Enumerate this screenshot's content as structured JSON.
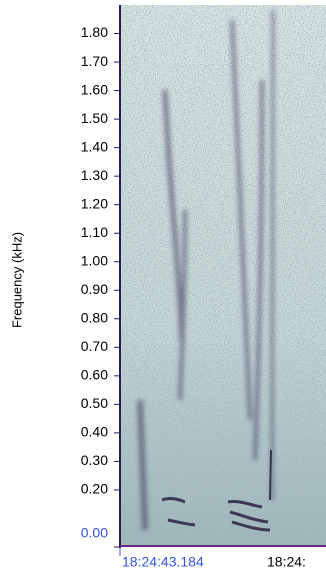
{
  "chart_data": {
    "type": "spectrogram",
    "y_label": "Frequency (kHz)",
    "ylim": [
      0,
      1.9
    ],
    "yticks": [
      {
        "value": 0,
        "label": "0.00"
      },
      {
        "value": 0.2,
        "label": "0.20"
      },
      {
        "value": 0.3,
        "label": "0.30"
      },
      {
        "value": 0.4,
        "label": "0.40"
      },
      {
        "value": 0.5,
        "label": "0.50"
      },
      {
        "value": 0.6,
        "label": "0.60"
      },
      {
        "value": 0.7,
        "label": "0.70"
      },
      {
        "value": 0.8,
        "label": "0.80"
      },
      {
        "value": 0.9,
        "label": "0.90"
      },
      {
        "value": 1.0,
        "label": "1.00"
      },
      {
        "value": 1.1,
        "label": "1.10"
      },
      {
        "value": 1.2,
        "label": "1.20"
      },
      {
        "value": 1.3,
        "label": "1.30"
      },
      {
        "value": 1.4,
        "label": "1.40"
      },
      {
        "value": 1.5,
        "label": "1.50"
      },
      {
        "value": 1.6,
        "label": "1.60"
      },
      {
        "value": 1.7,
        "label": "1.70"
      },
      {
        "value": 1.8,
        "label": "1.80"
      }
    ],
    "x_labels": [
      "18:24:43.184",
      "18:24:"
    ]
  }
}
